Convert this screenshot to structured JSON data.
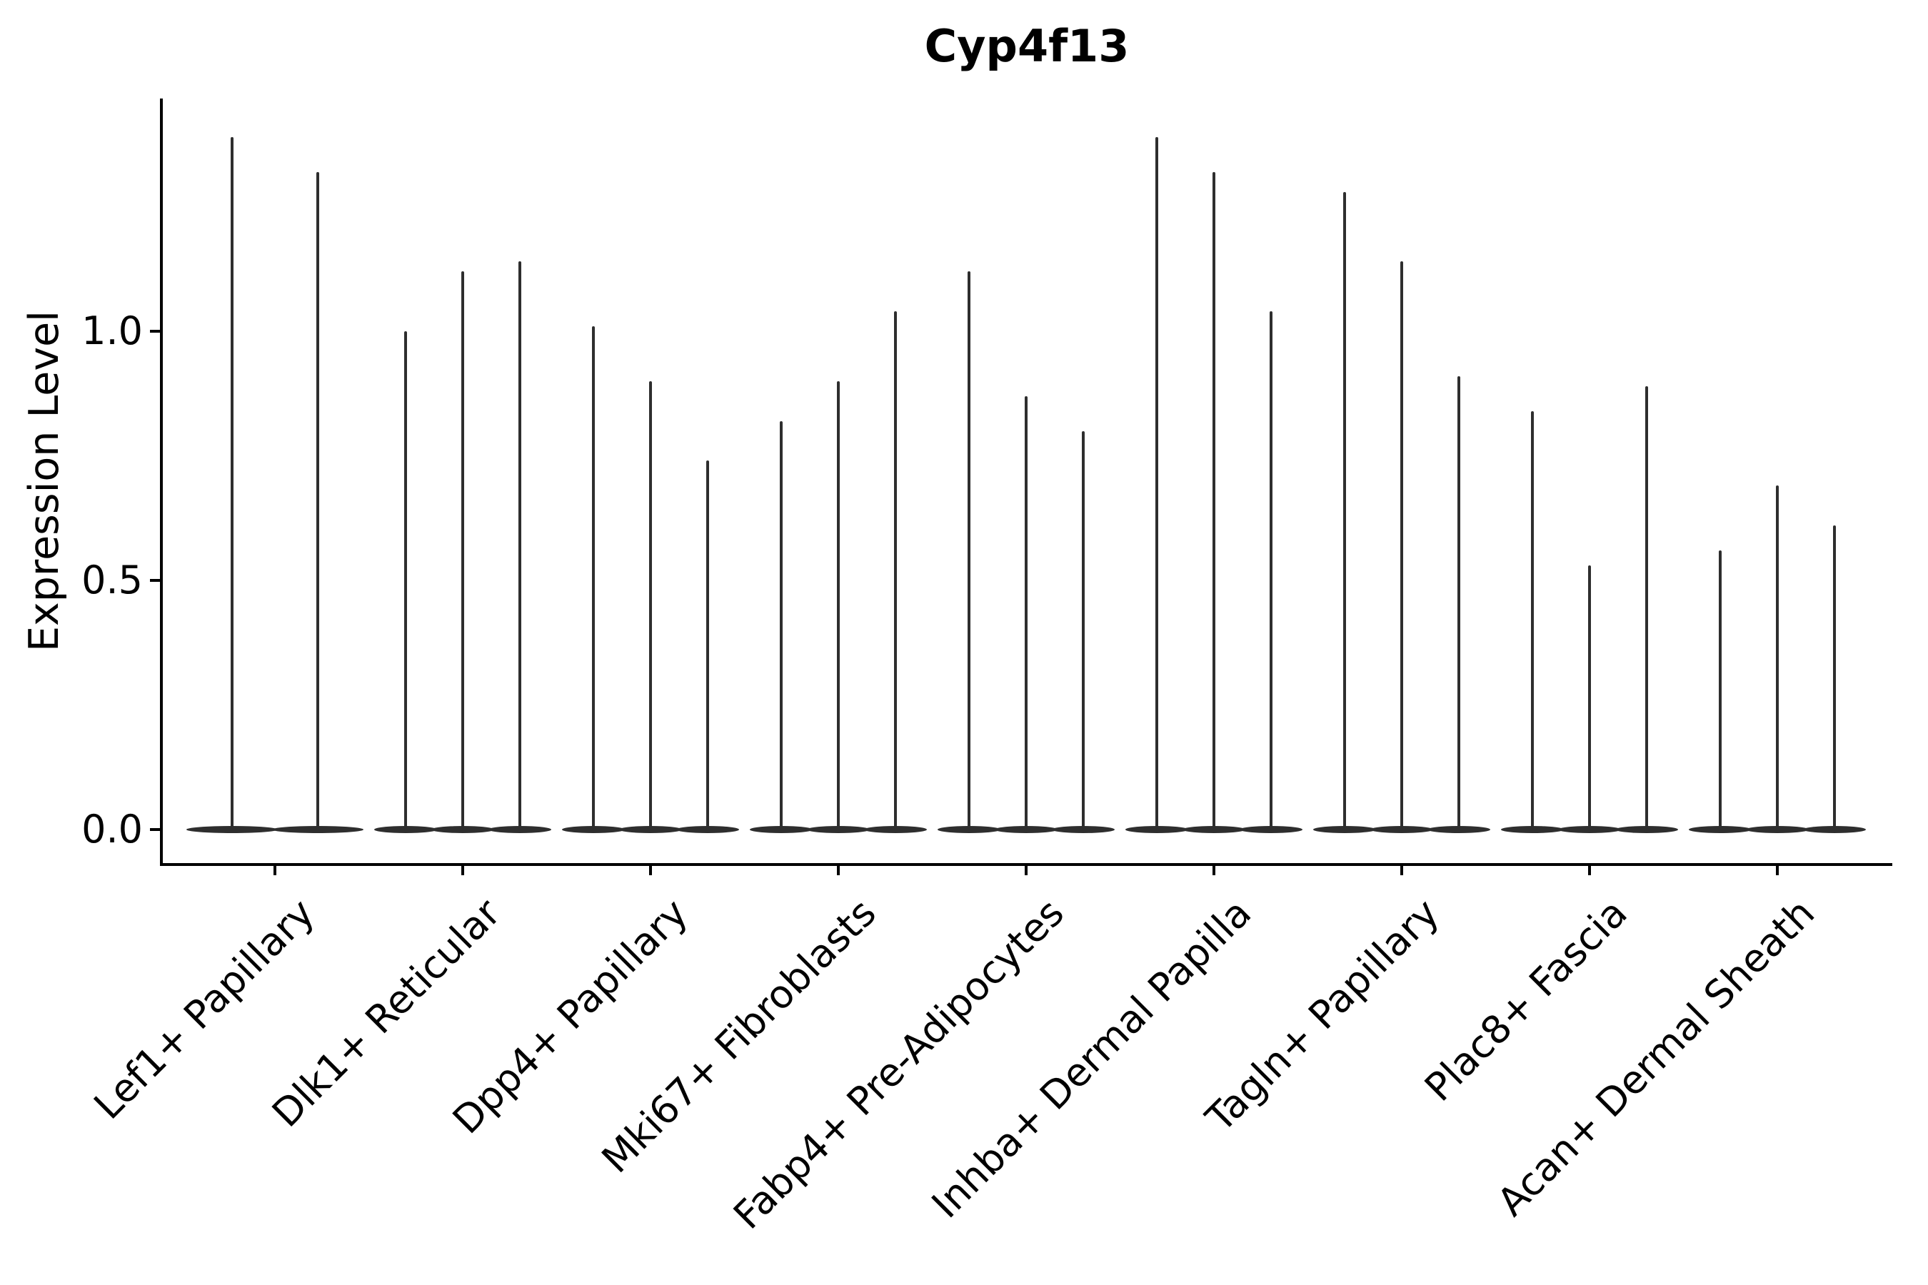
{
  "figure": {
    "title": "Cyp4f13",
    "ylabel": "Expression Level"
  },
  "colors": {
    "background": "#ffffff",
    "axis": "#000000",
    "violin": "#2e2e2e"
  },
  "chart_data": {
    "type": "violin",
    "title": "Cyp4f13",
    "xlabel": "",
    "ylabel": "Expression Level",
    "ylim": [
      -0.067,
      1.464
    ],
    "yticks": [
      {
        "label": "0.0",
        "value": 0.0
      },
      {
        "label": "0.5",
        "value": 0.5
      },
      {
        "label": "1.0",
        "value": 1.0
      }
    ],
    "legend": "none",
    "grid": false,
    "categories": [
      "Lef1+ Papillary",
      "Dlk1+ Reticular",
      "Dpp4+ Papillary",
      "Mki67+ Fibroblasts",
      "Fabp4+ Pre-Adipocytes",
      "Inhba+ Dermal Papilla",
      "Tagln+ Papillary",
      "Plac8+ Fascia",
      "Acan+ Dermal Sheath"
    ],
    "groups": [
      {
        "label": "Lef1+ Papillary",
        "violin_max_values": [
          1.39,
          1.32
        ]
      },
      {
        "label": "Dlk1+ Reticular",
        "violin_max_values": [
          1.0,
          1.12,
          1.14
        ]
      },
      {
        "label": "Dpp4+ Papillary",
        "violin_max_values": [
          1.01,
          0.9,
          0.74
        ]
      },
      {
        "label": "Mki67+ Fibroblasts",
        "violin_max_values": [
          0.82,
          0.9,
          1.04
        ]
      },
      {
        "label": "Fabp4+ Pre-Adipocytes",
        "violin_max_values": [
          1.12,
          0.87,
          0.8
        ]
      },
      {
        "label": "Inhba+ Dermal Papilla",
        "violin_max_values": [
          1.39,
          1.32,
          1.04
        ]
      },
      {
        "label": "Tagln+ Papillary",
        "violin_max_values": [
          1.28,
          1.14,
          0.91
        ]
      },
      {
        "label": "Plac8+ Fascia",
        "violin_max_values": [
          0.84,
          0.53,
          0.89
        ]
      },
      {
        "label": "Acan+ Dermal Sheath",
        "violin_max_values": [
          0.56,
          0.69,
          0.61
        ]
      }
    ],
    "violin_bulk_at_zero": true
  }
}
